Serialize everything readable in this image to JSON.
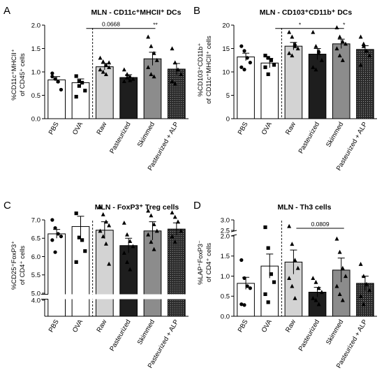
{
  "figure": {
    "categories": [
      "PBS",
      "OVA",
      "Raw",
      "Pasteurized",
      "Skimmed",
      "Pasteurized + ALP"
    ],
    "bar_colors": [
      "#ffffff",
      "#ffffff",
      "#d3d3d3",
      "#1e1e1e",
      "#8c8c8c",
      "#262626"
    ],
    "bar_patterns": [
      "none",
      "none",
      "none",
      "none",
      "none",
      "dots"
    ],
    "marker_shapes": [
      "circle",
      "square",
      "triangle",
      "triangle",
      "triangle",
      "triangle"
    ]
  },
  "chart_data": [
    {
      "id": "A",
      "panel_letter": "A",
      "type": "bar",
      "title": "MLN - CD11c⁺MHCII⁺ DCs",
      "ylabel_line1": "%CD11c⁺MHCII⁺",
      "ylabel_line2": "of CD45⁺ cells",
      "ylim": [
        0,
        2.0
      ],
      "yticks": [
        "0.0",
        "0.5",
        "1.0",
        "1.5",
        "2.0"
      ],
      "ytick_values": [
        0,
        0.5,
        1.0,
        1.5,
        2.0
      ],
      "values": [
        0.83,
        0.77,
        1.11,
        0.88,
        1.28,
        1.06
      ],
      "errors": [
        0.07,
        0.08,
        0.07,
        0.06,
        0.14,
        0.12
      ],
      "points": [
        [
          0.97,
          0.85,
          0.79,
          0.62,
          0.9
        ],
        [
          0.91,
          0.8,
          0.77,
          0.6,
          0.47,
          0.7
        ],
        [
          1.3,
          1.22,
          1.15,
          1.1,
          1.05,
          1.0,
          0.95,
          1.2
        ],
        [
          1.05,
          0.95,
          0.9,
          0.85,
          0.8,
          0.88,
          0.82
        ],
        [
          1.75,
          1.55,
          1.4,
          1.25,
          1.1,
          0.95,
          0.9
        ],
        [
          1.5,
          1.2,
          1.05,
          0.95,
          0.8,
          0.75
        ]
      ],
      "annotations": [
        {
          "text": "0.0668",
          "from": 1,
          "to": 4,
          "y": 1.93
        },
        {
          "text": "**",
          "from": 1,
          "to": 4,
          "y": 1.93,
          "star": true
        }
      ]
    },
    {
      "id": "B",
      "panel_letter": "B",
      "type": "bar",
      "title": "MLN - CD103⁺CD11b⁺ DCs",
      "ylabel_line1": "%CD103⁺CD11b⁺",
      "ylabel_line2": "of CD11c⁺MHCII⁺ cells",
      "ylim": [
        0,
        20
      ],
      "yticks": [
        "0",
        "5",
        "10",
        "15",
        "20"
      ],
      "ytick_values": [
        0,
        5,
        10,
        15,
        20
      ],
      "values": [
        13.2,
        11.9,
        15.5,
        13.8,
        16.0,
        14.8
      ],
      "errors": [
        0.8,
        1.0,
        0.8,
        1.2,
        1.0,
        0.8
      ],
      "points": [
        [
          15.5,
          14.5,
          13.0,
          12.0,
          11.0,
          10.5
        ],
        [
          13.5,
          13.0,
          12.5,
          11.5,
          11.0,
          9.5
        ],
        [
          18.5,
          17.5,
          16.0,
          15.0,
          14.0,
          13.5,
          15.5
        ],
        [
          18.5,
          15.5,
          14.0,
          12.5,
          11.0,
          10.5,
          14.5
        ],
        [
          19.5,
          17.5,
          16.5,
          16.0,
          15.0,
          13.5,
          12.5
        ],
        [
          17.5,
          15.5,
          14.5,
          13.5,
          11.5,
          16.0
        ]
      ],
      "annotations": [
        {
          "text": "*",
          "from": 1,
          "to": 4,
          "y": 19.3,
          "star": true,
          "mid": true
        },
        {
          "text": "*",
          "from": 1,
          "to": 4,
          "y": 19.3,
          "star": true
        }
      ]
    },
    {
      "id": "C",
      "panel_letter": "C",
      "type": "bar",
      "title": "MLN - FoxP3⁺ Treg cells",
      "ylabel_line1": "%CD25⁺FoxP3⁺",
      "ylabel_line2": "of CD4⁺ cells",
      "ylim_upper": [
        5.0,
        7.0
      ],
      "ylim_lower": [
        0,
        4.0
      ],
      "yticks": [
        "4.0",
        "5.0",
        "5.5",
        "6.0",
        "6.5",
        "7.0"
      ],
      "ytick_values": [
        4.0,
        5.0,
        5.5,
        6.0,
        6.5,
        7.0
      ],
      "values": [
        6.62,
        6.82,
        6.72,
        6.3,
        6.7,
        6.75
      ],
      "errors": [
        0.12,
        0.28,
        0.23,
        0.2,
        0.25,
        0.17
      ],
      "points": [
        [
          7.0,
          6.78,
          6.62,
          6.55,
          6.45,
          6.12
        ],
        [
          7.18,
          6.52,
          6.45,
          6.15,
          5.85
        ],
        [
          7.35,
          7.15,
          6.95,
          6.85,
          6.7,
          6.55,
          6.35,
          5.8
        ],
        [
          6.92,
          6.6,
          6.42,
          6.28,
          6.1,
          5.85,
          5.65
        ],
        [
          7.25,
          7.12,
          6.88,
          6.7,
          6.6,
          6.4,
          6.2
        ],
        [
          7.2,
          7.08,
          6.95,
          6.7,
          6.55,
          6.4
        ]
      ],
      "annotations": []
    },
    {
      "id": "D",
      "panel_letter": "D",
      "type": "bar",
      "title": "MLN - Th3 cells",
      "ylabel_line1": "%LAP⁺FoxP3⁻",
      "ylabel_line2": "of CD4⁺ cells",
      "ylim_lower": [
        0,
        2.0
      ],
      "ylim_upper": [
        2.5,
        3.0
      ],
      "yticks": [
        "0.0",
        "0.5",
        "1.0",
        "1.5",
        "2.0",
        "2.5",
        "3.0"
      ],
      "ytick_values": [
        0,
        0.5,
        1.0,
        1.5,
        2.0,
        2.5,
        3.0
      ],
      "values": [
        0.82,
        1.25,
        1.35,
        0.6,
        1.15,
        0.82
      ],
      "errors": [
        0.15,
        0.3,
        0.3,
        0.12,
        0.3,
        0.18
      ],
      "points": [
        [
          1.4,
          0.95,
          0.75,
          0.7,
          0.3,
          0.28
        ],
        [
          2.65,
          1.7,
          1.05,
          0.85,
          0.55,
          0.35
        ],
        [
          2.7,
          1.8,
          1.4,
          1.2,
          0.95,
          0.75,
          0.45
        ],
        [
          0.95,
          0.85,
          0.7,
          0.6,
          0.45,
          0.4,
          0.3
        ],
        [
          2.1,
          1.6,
          1.2,
          1.0,
          0.75,
          0.55,
          0.4
        ],
        [
          1.3,
          1.0,
          0.8,
          0.65,
          0.5,
          0.3
        ]
      ],
      "annotations": [
        {
          "text": "0.0809",
          "from": 2,
          "to": 4,
          "y": 2.5
        }
      ]
    }
  ]
}
